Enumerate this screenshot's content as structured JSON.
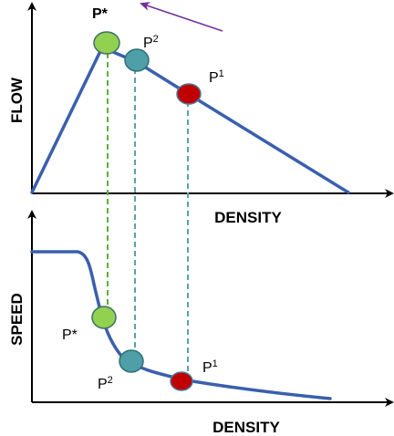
{
  "top_panel": {
    "y_axis_label": "FLOW",
    "x_axis_label": "DENSITY"
  },
  "bottom_panel": {
    "y_axis_label": "SPEED",
    "x_axis_label": "DENSITY"
  },
  "points": {
    "p_star": {
      "letter": "P",
      "mark": "*",
      "color": "#92d050"
    },
    "p2": {
      "letter": "P",
      "mark": "2",
      "color": "#4f9fa8"
    },
    "p1": {
      "letter": "P",
      "mark": "1",
      "color": "#c00000"
    }
  },
  "colors": {
    "curve": "#3a5fae",
    "arrow": "#7030a0",
    "p_star_guide": "#5fae3c",
    "p2_guide": "#5aa3a6",
    "p1_guide": "#5aa3a6"
  }
}
